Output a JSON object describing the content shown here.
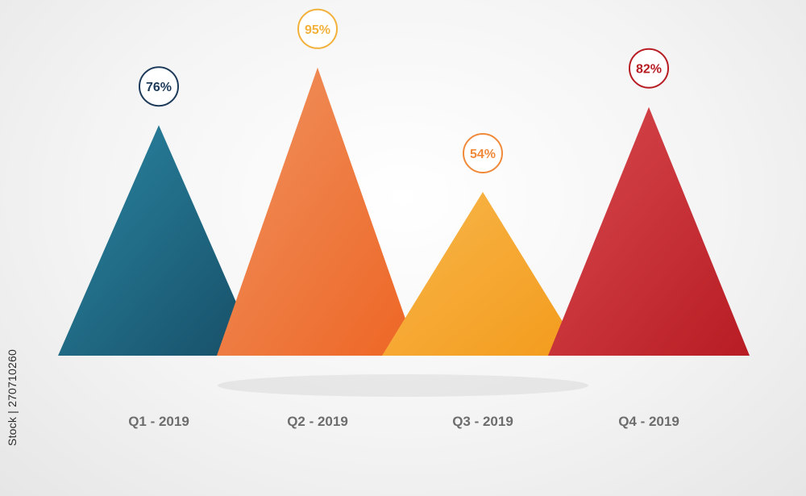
{
  "chart_data": {
    "type": "bar",
    "categories": [
      "Q1 - 2019",
      "Q2 - 2019",
      "Q3 - 2019",
      "Q4 - 2019"
    ],
    "values": [
      76,
      95,
      54,
      82
    ],
    "value_labels": [
      "76%",
      "95%",
      "54%",
      "82%"
    ],
    "ylim": [
      0,
      100
    ],
    "bar_shape": "triangle",
    "grid": false,
    "legend": "none",
    "colors": [
      {
        "light": "#2a86a3",
        "dark": "#174e66",
        "label": "#1d3a5a"
      },
      {
        "light": "#ef9360",
        "dark": "#ee6524",
        "label": "#f2b13a"
      },
      {
        "light": "#f8b64a",
        "dark": "#f39b1c",
        "label": "#f08a3a"
      },
      {
        "light": "#d84a4f",
        "dark": "#b71c23",
        "label": "#b71c23"
      }
    ]
  },
  "watermark": "Stock | 270710260"
}
